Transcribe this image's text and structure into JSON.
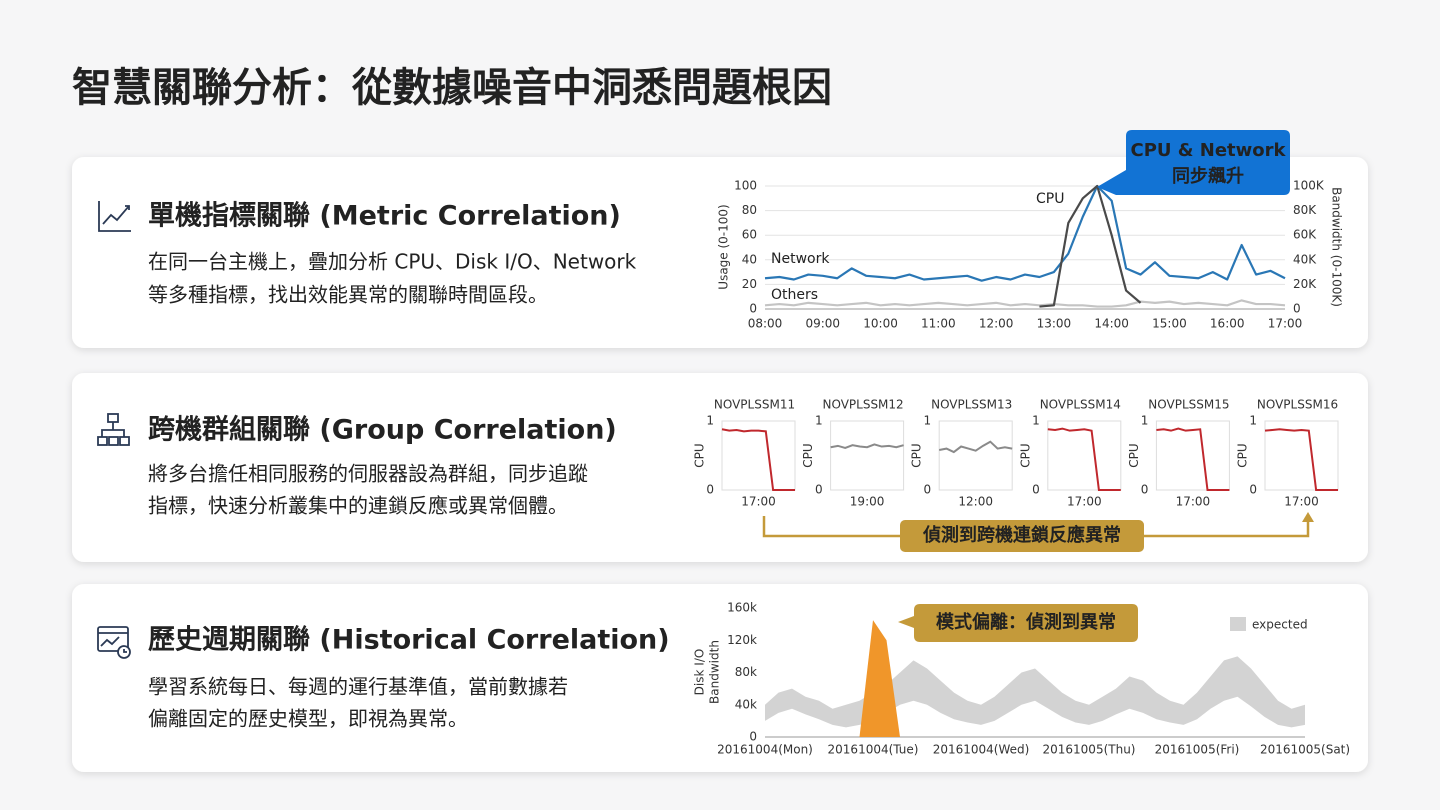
{
  "title": "智慧關聯分析：從數據噪音中洞悉問題根因",
  "cards": [
    {
      "title": "單機指標關聯 (Metric Correlation)",
      "lines": [
        "在同一台主機上，疊加分析 CPU、Disk I/O、Network",
        "等多種指標，找出效能異常的關聯時間區段。"
      ],
      "chart": {
        "type": "line",
        "ylabel": "Usage (0-100)",
        "y2label": "Bandwidth (0-100K)",
        "annotation": [
          "CPU & Network",
          "同步飆升"
        ],
        "x": [
          8,
          8.25,
          8.5,
          8.75,
          9,
          9.25,
          9.5,
          9.75,
          10,
          10.25,
          10.5,
          10.75,
          11,
          11.25,
          11.5,
          11.75,
          12,
          12.25,
          12.5,
          12.75,
          13,
          13.25,
          13.5,
          13.75,
          14,
          14.25,
          14.5,
          14.75,
          15,
          15.25,
          15.5,
          15.75,
          16,
          16.25,
          16.5,
          16.75,
          17
        ],
        "xlim": [
          8,
          17
        ],
        "xticks": [
          {
            "value": 8,
            "label": "08:00"
          },
          {
            "value": 9,
            "label": "09:00"
          },
          {
            "value": 10,
            "label": "10:00"
          },
          {
            "value": 11,
            "label": "11:00"
          },
          {
            "value": 12,
            "label": "12:00"
          },
          {
            "value": 13,
            "label": "13:00"
          },
          {
            "value": 14,
            "label": "14:00"
          },
          {
            "value": 15,
            "label": "15:00"
          },
          {
            "value": 16,
            "label": "16:00"
          },
          {
            "value": 17,
            "label": "17:00"
          }
        ],
        "ylim": [
          0,
          100
        ],
        "yticks": [
          0,
          20,
          40,
          60,
          80,
          100
        ],
        "y2lim": [
          0,
          100000
        ],
        "y2ticks": [
          {
            "value": 0,
            "label": "0"
          },
          {
            "value": 20000,
            "label": "20K"
          },
          {
            "value": 40000,
            "label": "40K"
          },
          {
            "value": 60000,
            "label": "60K"
          },
          {
            "value": 80000,
            "label": "80K"
          },
          {
            "value": 100000,
            "label": "100K"
          }
        ],
        "grid": true,
        "series": [
          {
            "name": "Others",
            "color": "#c4c4c4",
            "values": [
              3,
              4,
              3,
              5,
              4,
              3,
              4,
              5,
              3,
              4,
              3,
              4,
              5,
              4,
              3,
              4,
              5,
              3,
              4,
              3,
              4,
              3,
              3,
              2,
              2,
              3,
              6,
              5,
              6,
              4,
              5,
              4,
              3,
              7,
              4,
              4,
              3
            ]
          },
          {
            "name": "Network",
            "color": "#2a77b5",
            "axis": "y2",
            "values": [
              25000,
              26000,
              24000,
              28000,
              27000,
              25000,
              33000,
              27000,
              26000,
              25000,
              28000,
              24000,
              25000,
              26000,
              27000,
              23000,
              26000,
              24000,
              28000,
              26000,
              30000,
              45000,
              75000,
              100000,
              88000,
              33000,
              28000,
              38000,
              27000,
              26000,
              25000,
              30000,
              24000,
              52000,
              28000,
              31000,
              25000
            ]
          },
          {
            "name": "CPU",
            "color": "#4a4a4a",
            "values": [
              null,
              null,
              null,
              null,
              null,
              null,
              null,
              null,
              null,
              null,
              null,
              null,
              null,
              null,
              null,
              null,
              null,
              null,
              null,
              2,
              3,
              70,
              90,
              100,
              60,
              15,
              5,
              null,
              null,
              null,
              null,
              null,
              null,
              null,
              null,
              null,
              null
            ]
          }
        ]
      }
    },
    {
      "title": "跨機群組關聯 (Group Correlation)",
      "lines": [
        "將多台擔任相同服務的伺服器設為群組，同步追蹤",
        "指標，快速分析叢集中的連鎖反應或異常個體。"
      ],
      "chart": {
        "type": "multiples",
        "ylabel": "CPU",
        "ylim": [
          0,
          1
        ],
        "yticks": [
          0,
          1
        ],
        "caption": "偵測到跨機連鎖反應異常",
        "panels": [
          {
            "name": "NOVPLSSM11",
            "color": "#c0282d",
            "categories": [
              null,
              null,
              null,
              null,
              null,
              "17:00",
              null,
              null,
              null,
              null,
              null
            ],
            "values": [
              0.88,
              0.86,
              0.87,
              0.85,
              0.86,
              0.86,
              0.85,
              0,
              0,
              0,
              0
            ]
          },
          {
            "name": "NOVPLSSM12",
            "color": "#8a8a8a",
            "categories": [
              null,
              null,
              null,
              null,
              null,
              "19:00",
              null,
              null,
              null,
              null,
              null
            ],
            "values": [
              0.62,
              0.64,
              0.61,
              0.65,
              0.63,
              0.62,
              0.66,
              0.63,
              0.64,
              0.62,
              0.65
            ]
          },
          {
            "name": "NOVPLSSM13",
            "color": "#8a8a8a",
            "categories": [
              null,
              null,
              null,
              null,
              null,
              "12:00",
              null,
              null,
              null,
              null,
              null
            ],
            "values": [
              0.58,
              0.6,
              0.55,
              0.63,
              0.6,
              0.57,
              0.64,
              0.7,
              0.6,
              0.62,
              0.6
            ]
          },
          {
            "name": "NOVPLSSM14",
            "color": "#c0282d",
            "categories": [
              null,
              null,
              null,
              null,
              null,
              "17:00",
              null,
              null,
              null,
              null,
              null
            ],
            "values": [
              0.88,
              0.87,
              0.89,
              0.86,
              0.87,
              0.88,
              0.86,
              0,
              0,
              0,
              0
            ]
          },
          {
            "name": "NOVPLSSM15",
            "color": "#c0282d",
            "categories": [
              null,
              null,
              null,
              null,
              null,
              "17:00",
              null,
              null,
              null,
              null,
              null
            ],
            "values": [
              0.87,
              0.88,
              0.86,
              0.89,
              0.86,
              0.87,
              0.88,
              0,
              0,
              0,
              0
            ]
          },
          {
            "name": "NOVPLSSM16",
            "color": "#c0282d",
            "categories": [
              null,
              null,
              null,
              null,
              null,
              "17:00",
              null,
              null,
              null,
              null,
              null
            ],
            "values": [
              0.86,
              0.87,
              0.88,
              0.87,
              0.86,
              0.87,
              0.86,
              0,
              0,
              0,
              0
            ]
          }
        ]
      }
    },
    {
      "title": "歷史週期關聯 (Historical Correlation)",
      "lines": [
        "學習系統每日、每週的運行基準值，當前數據若",
        "偏離固定的歷史模型，即視為異常。"
      ],
      "chart": {
        "type": "area",
        "ylabel": [
          "Disk I/O",
          "Bandwidth"
        ],
        "annotation": "模式偏離：偵測到異常",
        "categories": [
          "20161004(Mon)",
          "20161004(Tue)",
          "20161004(Wed)",
          "20161005(Thu)",
          "20161005(Fri)",
          "20161005(Sat)"
        ],
        "ylim": [
          0,
          160000
        ],
        "yticks": [
          {
            "value": 0,
            "label": "0"
          },
          {
            "value": 40000,
            "label": "40k"
          },
          {
            "value": 80000,
            "label": "80k"
          },
          {
            "value": 120000,
            "label": "120k"
          },
          {
            "value": 160000,
            "label": "160k"
          }
        ],
        "band": {
          "name": "expected",
          "color": "#d3d3d3",
          "upper": [
            40000,
            55000,
            60000,
            50000,
            45000,
            35000,
            40000,
            45000,
            55000,
            65000,
            80000,
            95000,
            85000,
            70000,
            55000,
            45000,
            40000,
            50000,
            65000,
            80000,
            85000,
            70000,
            55000,
            45000,
            40000,
            50000,
            60000,
            75000,
            70000,
            55000,
            45000,
            40000,
            55000,
            75000,
            95000,
            100000,
            85000,
            65000,
            45000,
            35000,
            40000
          ],
          "lower": [
            20000,
            30000,
            35000,
            28000,
            22000,
            15000,
            12000,
            15000,
            20000,
            30000,
            40000,
            45000,
            40000,
            30000,
            22000,
            18000,
            15000,
            20000,
            30000,
            40000,
            45000,
            35000,
            25000,
            18000,
            15000,
            20000,
            28000,
            35000,
            30000,
            22000,
            18000,
            15000,
            22000,
            35000,
            45000,
            50000,
            38000,
            25000,
            15000,
            12000,
            15000
          ]
        },
        "anomaly": {
          "color": "#f0962a",
          "values": [
            null,
            null,
            null,
            null,
            null,
            null,
            null,
            0,
            145000,
            120000,
            0,
            null,
            null,
            null,
            null,
            null,
            null,
            null,
            null,
            null,
            null,
            null,
            null,
            null,
            null,
            null,
            null,
            null,
            null,
            null,
            null,
            null,
            null,
            null,
            null,
            null,
            null,
            null,
            null,
            null,
            null
          ]
        }
      }
    }
  ]
}
